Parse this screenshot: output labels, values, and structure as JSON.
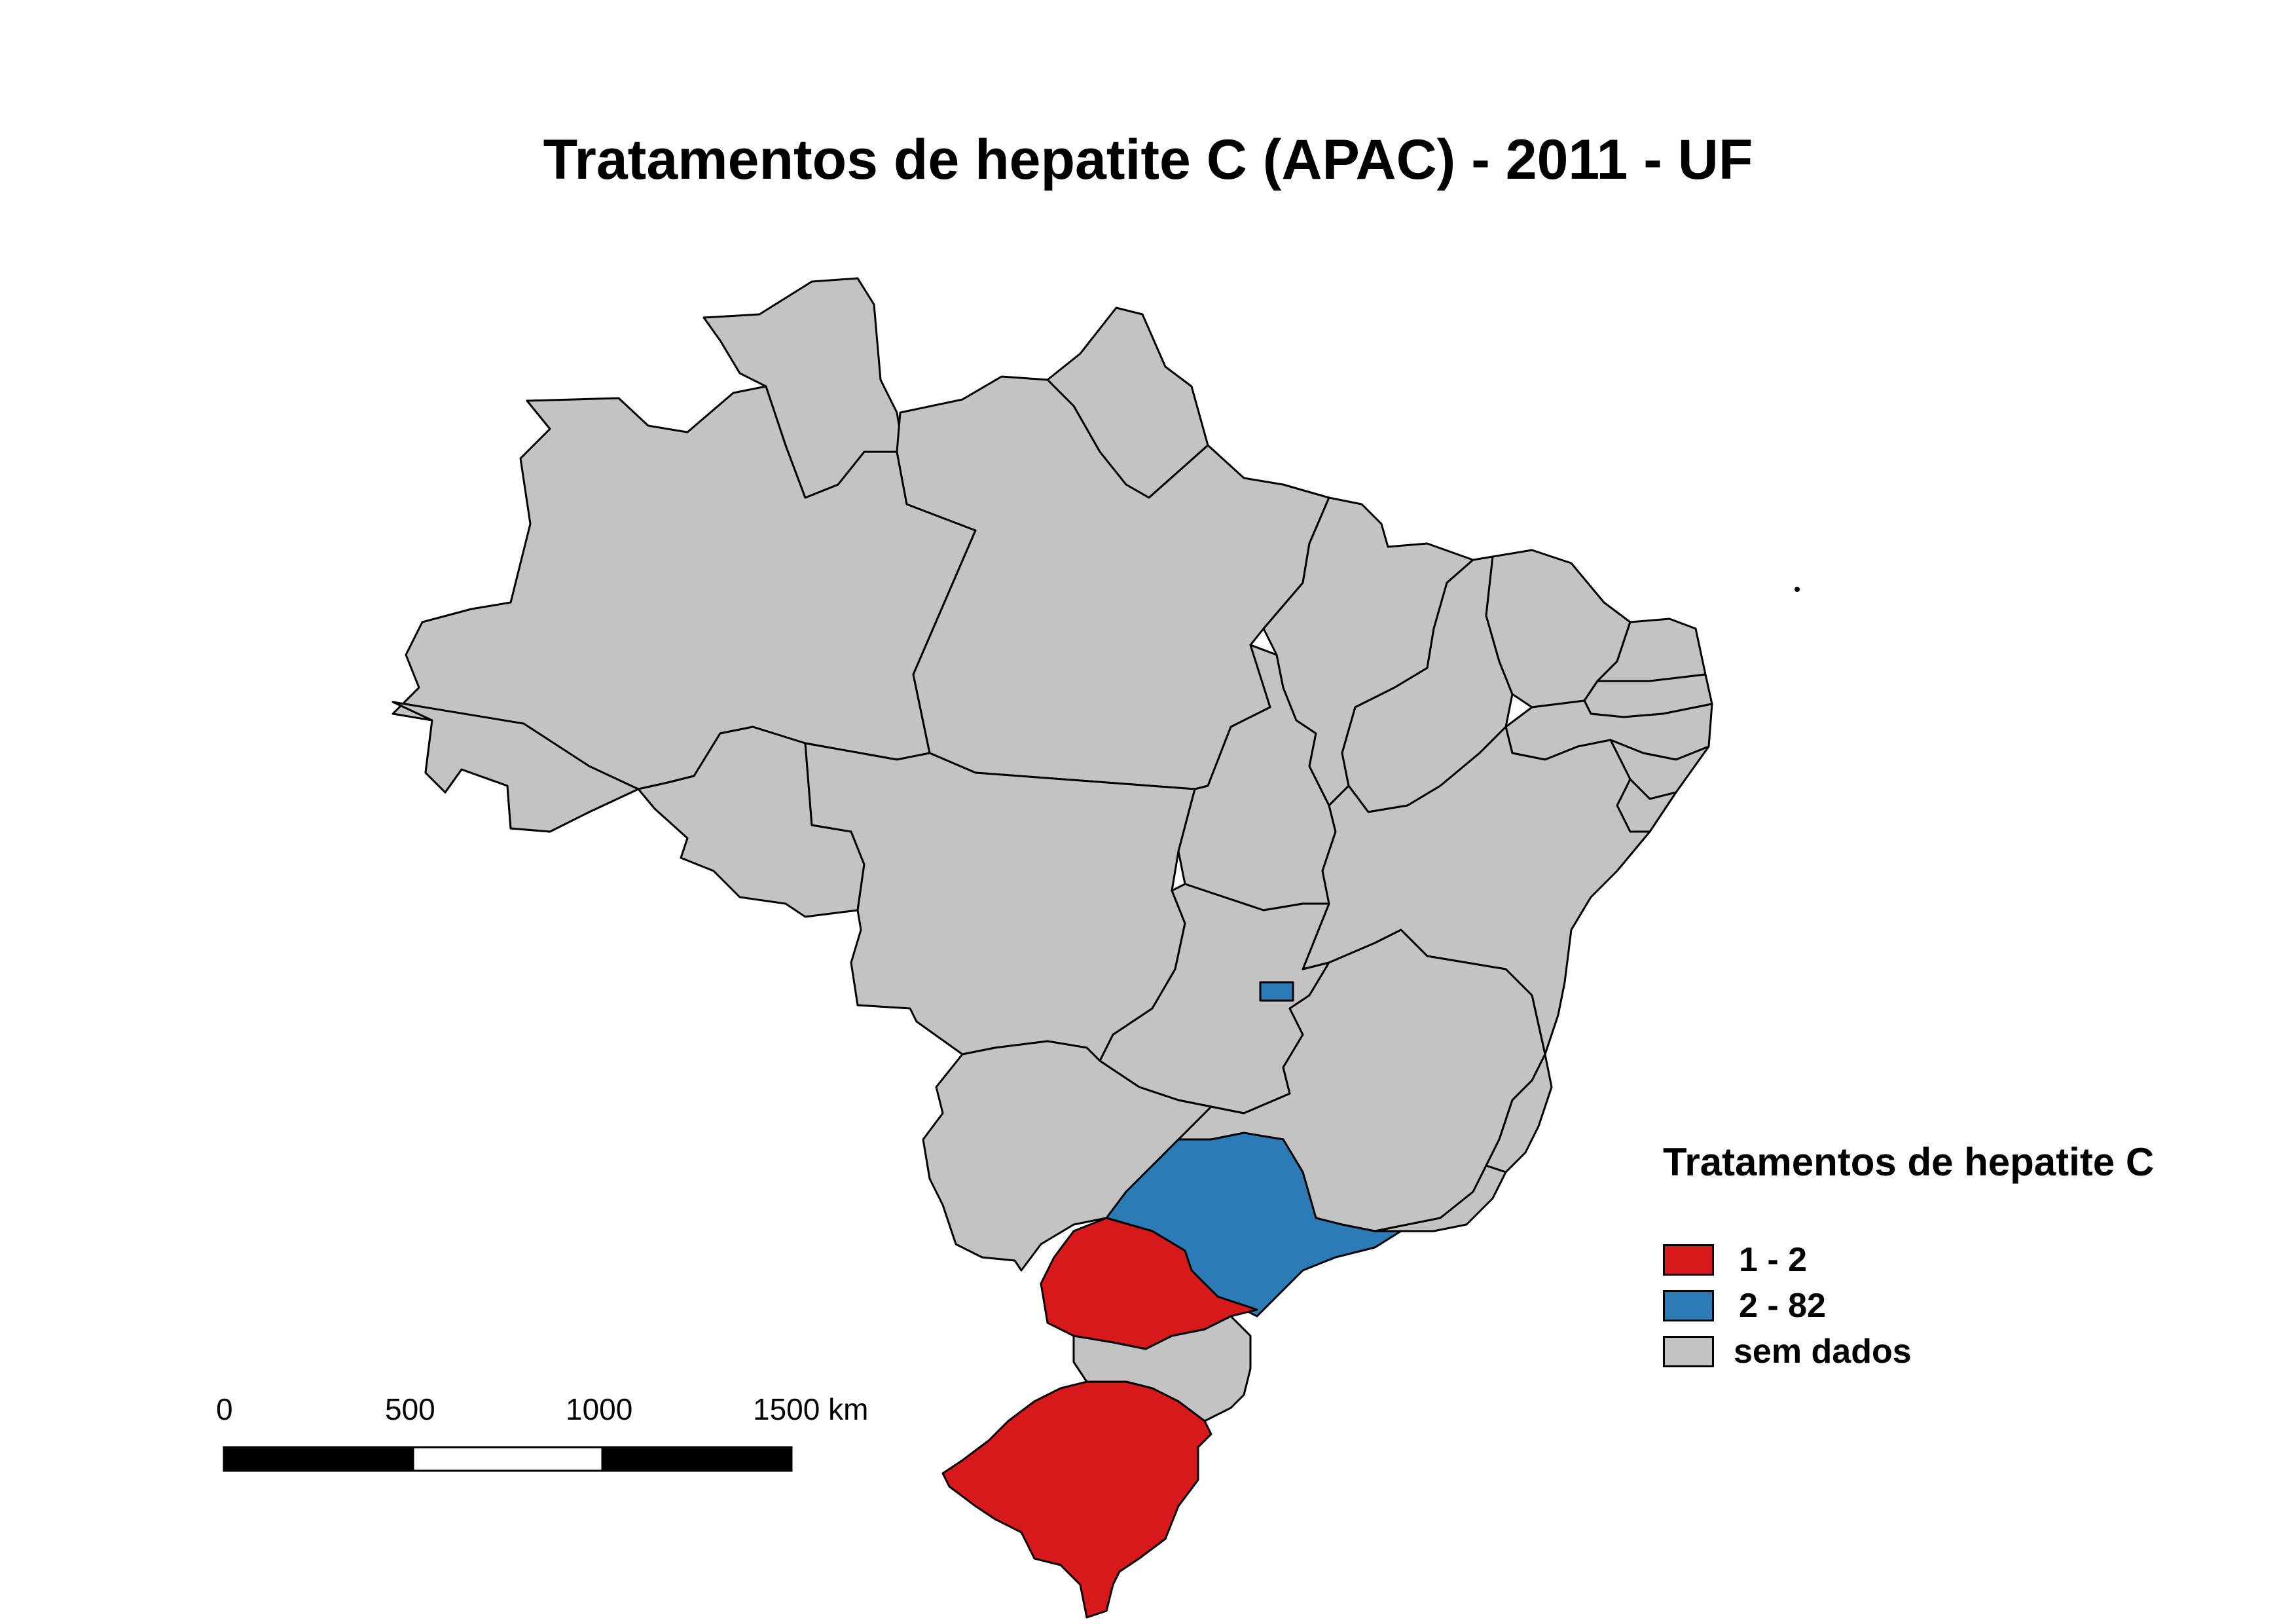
{
  "title": "Tratamentos de hepatite C (APAC) - 2011 - UF",
  "colors": {
    "red": "#d7191c",
    "blue": "#2c7bb6",
    "grey": "#c3c3c3",
    "border": "#000000"
  },
  "map": {
    "regions": [
      {
        "name": "AM",
        "class": "sem dados"
      },
      {
        "name": "RR",
        "class": "sem dados"
      },
      {
        "name": "AP",
        "class": "sem dados"
      },
      {
        "name": "PA",
        "class": "sem dados"
      },
      {
        "name": "AC",
        "class": "sem dados"
      },
      {
        "name": "RO",
        "class": "sem dados"
      },
      {
        "name": "MT",
        "class": "sem dados"
      },
      {
        "name": "TO",
        "class": "sem dados"
      },
      {
        "name": "MA",
        "class": "sem dados"
      },
      {
        "name": "PI",
        "class": "sem dados"
      },
      {
        "name": "CE",
        "class": "sem dados"
      },
      {
        "name": "RN",
        "class": "sem dados"
      },
      {
        "name": "PB",
        "class": "sem dados"
      },
      {
        "name": "PE",
        "class": "sem dados"
      },
      {
        "name": "AL",
        "class": "sem dados"
      },
      {
        "name": "SE",
        "class": "sem dados"
      },
      {
        "name": "BA",
        "class": "sem dados"
      },
      {
        "name": "GO",
        "class": "sem dados"
      },
      {
        "name": "DF",
        "class": "2 - 82"
      },
      {
        "name": "MS",
        "class": "sem dados"
      },
      {
        "name": "MG",
        "class": "sem dados"
      },
      {
        "name": "ES",
        "class": "sem dados"
      },
      {
        "name": "RJ",
        "class": "sem dados"
      },
      {
        "name": "SP",
        "class": "2 - 82"
      },
      {
        "name": "PR",
        "class": "1 - 2"
      },
      {
        "name": "SC",
        "class": "sem dados"
      },
      {
        "name": "RS",
        "class": "1 - 2"
      }
    ]
  },
  "legend": {
    "title": "Tratamentos de hepatite C",
    "items": [
      {
        "label": "1 - 2",
        "color": "#d7191c"
      },
      {
        "label": "2 - 82",
        "color": "#2c7bb6"
      },
      {
        "label": "sem dados",
        "color": "#c3c3c3"
      }
    ]
  },
  "scale_bar": {
    "ticks": [
      "0",
      "500",
      "1000",
      "1500 km"
    ]
  }
}
